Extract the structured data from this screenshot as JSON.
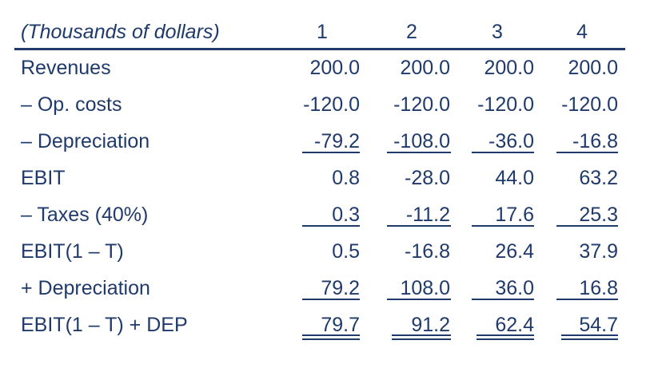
{
  "table": {
    "header": {
      "label": "(Thousands of dollars)",
      "years": [
        "1",
        "2",
        "3",
        "4"
      ]
    },
    "rows": [
      {
        "label": "Revenues",
        "values": [
          "200.0",
          "200.0",
          "200.0",
          "200.0"
        ],
        "rule": "none"
      },
      {
        "label": "– Op. costs",
        "values": [
          "-120.0",
          "-120.0",
          "-120.0",
          "-120.0"
        ],
        "rule": "none"
      },
      {
        "label": "– Depreciation",
        "values": [
          "-79.2",
          "-108.0",
          "-36.0",
          "-16.8"
        ],
        "rule": "single"
      },
      {
        "label": "EBIT",
        "values": [
          "0.8",
          "-28.0",
          "44.0",
          "63.2"
        ],
        "rule": "none"
      },
      {
        "label": "– Taxes (40%)",
        "values": [
          "0.3",
          "-11.2",
          "17.6",
          "25.3"
        ],
        "rule": "single"
      },
      {
        "label": "EBIT(1 – T)",
        "values": [
          "0.5",
          "-16.8",
          "26.4",
          "37.9"
        ],
        "rule": "none"
      },
      {
        "label": "+ Depreciation",
        "values": [
          "79.2",
          "108.0",
          "36.0",
          "16.8"
        ],
        "rule": "single"
      },
      {
        "label": "EBIT(1 – T) + DEP",
        "values": [
          "79.7",
          "91.2",
          "62.4",
          "54.7"
        ],
        "rule": "double"
      }
    ],
    "colors": {
      "text": "#1f3a6b",
      "rule": "#1f3a6b",
      "background": "#ffffff"
    }
  }
}
